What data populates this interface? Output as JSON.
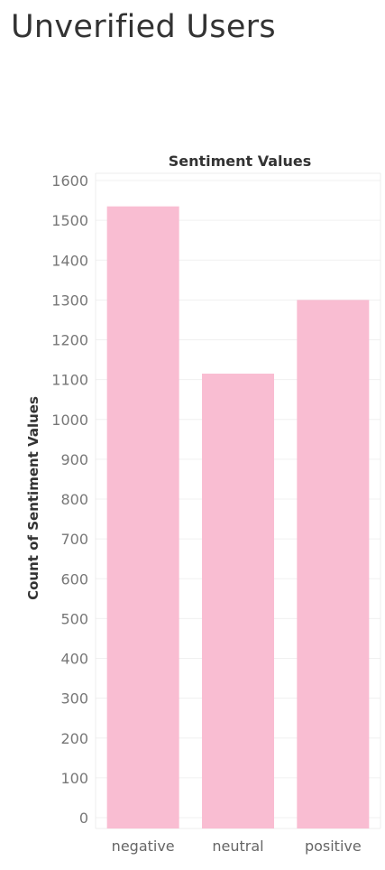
{
  "page": {
    "title": "Unverified Users"
  },
  "chart_data": {
    "type": "bar",
    "title": "Sentiment Values",
    "xlabel": "",
    "ylabel": "Count of Sentiment Values",
    "categories": [
      "negative",
      "neutral",
      "positive"
    ],
    "values": [
      1535,
      1115,
      1300
    ],
    "ylim": [
      0,
      1600
    ],
    "yticks": [
      0,
      100,
      200,
      300,
      400,
      500,
      600,
      700,
      800,
      900,
      1000,
      1100,
      1200,
      1300,
      1400,
      1500,
      1600
    ],
    "grid": true,
    "bar_color": "#f9bdd2",
    "legend": "none"
  }
}
